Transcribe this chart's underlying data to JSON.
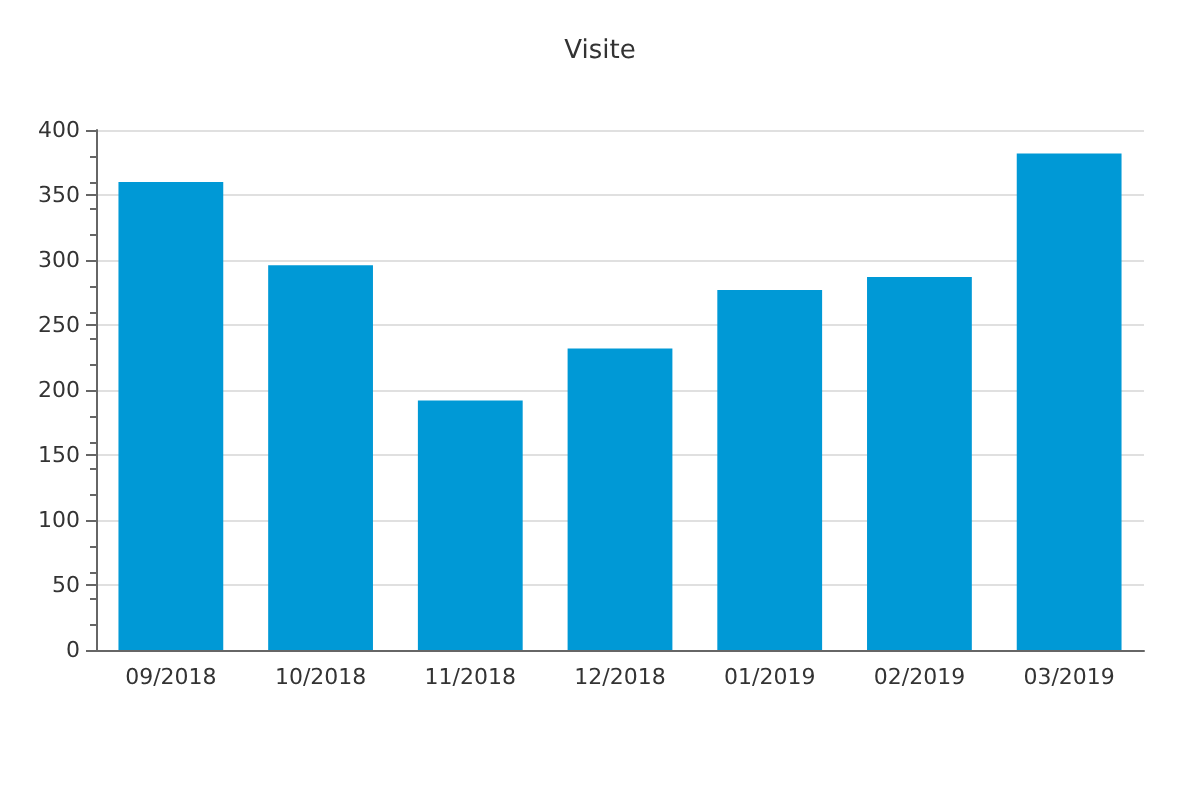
{
  "chart_data": {
    "type": "bar",
    "title": "Visite",
    "categories": [
      "09/2018",
      "10/2018",
      "11/2018",
      "12/2018",
      "01/2019",
      "02/2019",
      "03/2019"
    ],
    "values": [
      360,
      296,
      192,
      232,
      277,
      287,
      382
    ],
    "color": "#0099d6",
    "ylim": [
      0,
      400
    ],
    "yticks": [
      0,
      50,
      100,
      150,
      200,
      250,
      300,
      350,
      400
    ],
    "grid": "y"
  }
}
